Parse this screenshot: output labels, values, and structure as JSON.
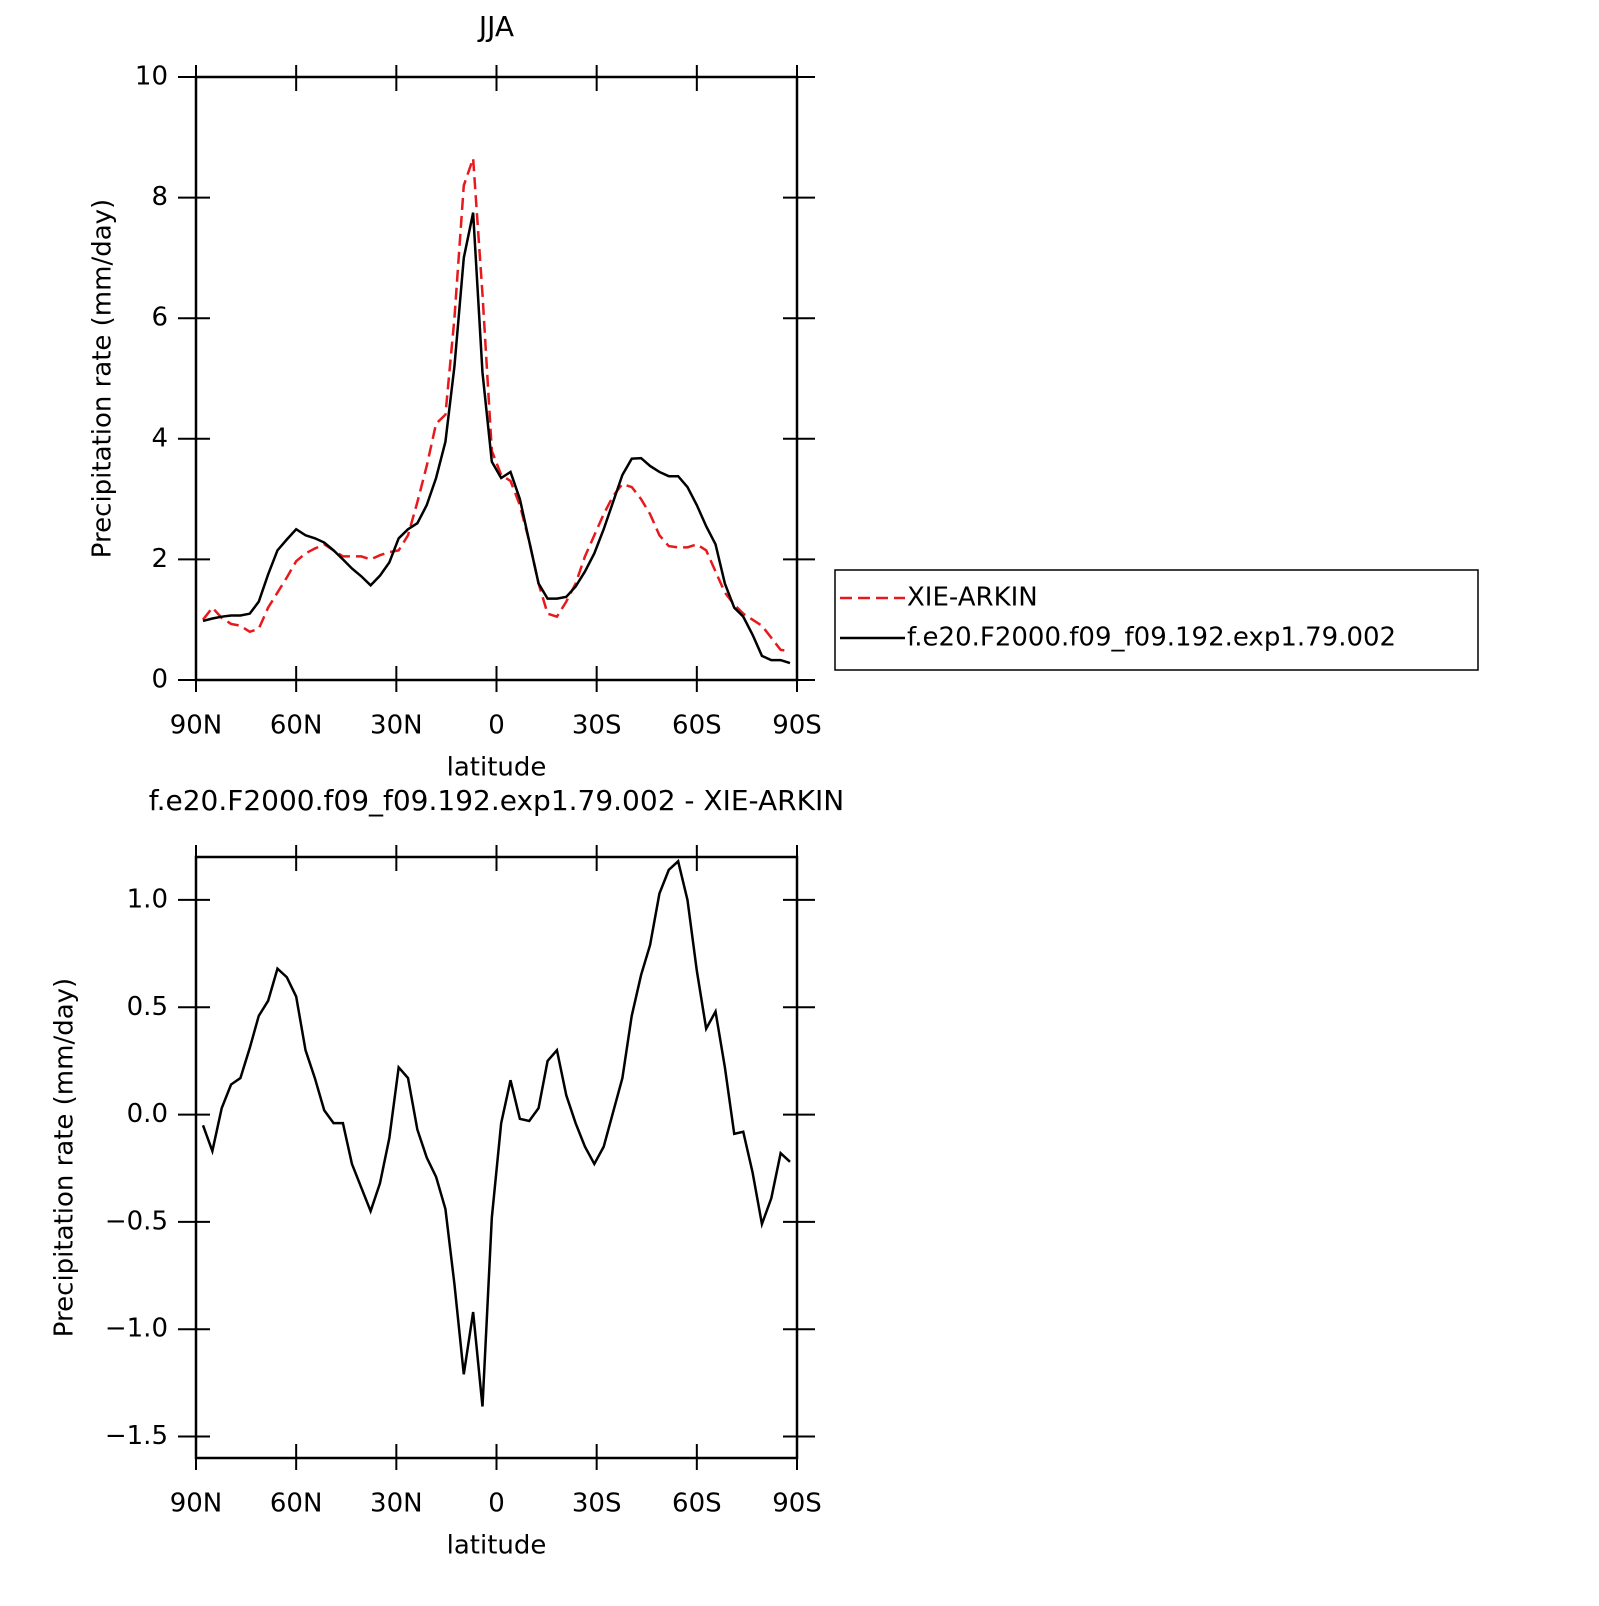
{
  "chart_data": [
    {
      "type": "line",
      "title": "JJA",
      "xlabel": "latitude",
      "ylabel": "Precipitation rate (mm/day)",
      "x": [
        87.9,
        85.1,
        82.3,
        79.5,
        76.7,
        73.9,
        71.2,
        68.4,
        65.6,
        62.8,
        60.0,
        57.2,
        54.4,
        51.6,
        48.8,
        46.0,
        43.3,
        40.5,
        37.7,
        34.9,
        32.1,
        29.3,
        26.5,
        23.7,
        20.9,
        18.1,
        15.3,
        12.6,
        9.8,
        7.0,
        4.2,
        1.4,
        -1.4,
        -4.2,
        -7.0,
        -9.8,
        -12.6,
        -15.3,
        -18.1,
        -20.9,
        -23.7,
        -26.5,
        -29.3,
        -32.1,
        -34.9,
        -37.7,
        -40.5,
        -43.3,
        -46.0,
        -48.8,
        -51.6,
        -54.4,
        -57.2,
        -60.0,
        -62.8,
        -65.6,
        -68.4,
        -71.2,
        -73.9,
        -76.7,
        -79.5,
        -82.3,
        -85.1,
        -87.9
      ],
      "series": [
        {
          "name": "XIE-ARKIN",
          "color": "#e8191c",
          "dash": "dashed",
          "values": [
            1.0,
            1.2,
            1.03,
            0.93,
            0.9,
            0.8,
            0.85,
            1.2,
            1.45,
            1.7,
            1.97,
            2.1,
            2.18,
            2.25,
            2.15,
            2.05,
            2.05,
            2.05,
            2.0,
            2.07,
            2.12,
            2.15,
            2.4,
            2.95,
            3.55,
            4.25,
            4.4,
            6.0,
            8.2,
            8.65,
            6.4,
            3.8,
            3.4,
            3.3,
            2.9,
            2.3,
            1.6,
            1.1,
            1.05,
            1.3,
            1.6,
            2.05,
            2.4,
            2.75,
            3.05,
            3.25,
            3.2,
            3.0,
            2.75,
            2.4,
            2.22,
            2.2,
            2.2,
            2.25,
            2.15,
            1.8,
            1.45,
            1.25,
            1.1,
            1.0,
            0.9,
            0.7,
            0.5,
            0.48
          ]
        },
        {
          "name": "f.e20.F2000.f09_f09.192.exp1.79.002",
          "color": "#000000",
          "dash": "solid",
          "values": [
            0.98,
            1.02,
            1.05,
            1.07,
            1.07,
            1.1,
            1.3,
            1.75,
            2.15,
            2.33,
            2.5,
            2.4,
            2.35,
            2.28,
            2.15,
            2.0,
            1.85,
            1.72,
            1.57,
            1.73,
            1.95,
            2.35,
            2.5,
            2.6,
            2.9,
            3.35,
            3.95,
            5.2,
            7.0,
            7.75,
            5.1,
            3.62,
            3.35,
            3.45,
            3.0,
            2.3,
            1.6,
            1.35,
            1.35,
            1.38,
            1.55,
            1.8,
            2.1,
            2.5,
            2.95,
            3.4,
            3.67,
            3.68,
            3.55,
            3.45,
            3.38,
            3.38,
            3.2,
            2.9,
            2.55,
            2.25,
            1.6,
            1.2,
            1.05,
            0.75,
            0.4,
            0.33,
            0.33,
            0.28
          ]
        }
      ],
      "xlim": [
        90,
        -90
      ],
      "xticks": [
        {
          "value": 90,
          "label": "90N"
        },
        {
          "value": 60,
          "label": "60N"
        },
        {
          "value": 30,
          "label": "30N"
        },
        0,
        {
          "value": -30,
          "label": "30S"
        },
        {
          "value": -60,
          "label": "60S"
        },
        {
          "value": -90,
          "label": "90S"
        }
      ],
      "ylim": [
        0,
        10
      ],
      "yticks": [
        0,
        2,
        4,
        6,
        8,
        10
      ],
      "legend": "outside right"
    },
    {
      "type": "line",
      "title": "f.e20.F2000.f09_f09.192.exp1.79.002 - XIE-ARKIN",
      "xlabel": "latitude",
      "ylabel": "Precipitation rate (mm/day)",
      "x": [
        87.9,
        85.1,
        82.3,
        79.5,
        76.7,
        73.9,
        71.2,
        68.4,
        65.6,
        62.8,
        60.0,
        57.2,
        54.4,
        51.6,
        48.8,
        46.0,
        43.3,
        40.5,
        37.7,
        34.9,
        32.1,
        29.3,
        26.5,
        23.7,
        20.9,
        18.1,
        15.3,
        12.6,
        9.8,
        7.0,
        4.2,
        1.4,
        -1.4,
        -4.2,
        -7.0,
        -9.8,
        -12.6,
        -15.3,
        -18.1,
        -20.9,
        -23.7,
        -26.5,
        -29.3,
        -32.1,
        -34.9,
        -37.7,
        -40.5,
        -43.3,
        -46.0,
        -48.8,
        -51.6,
        -54.4,
        -57.2,
        -60.0,
        -62.8,
        -65.6,
        -68.4,
        -71.2,
        -73.9,
        -76.7,
        -79.5,
        -82.3,
        -85.1,
        -87.9
      ],
      "series": [
        {
          "color": "#000000",
          "dash": "solid",
          "values": [
            -0.05,
            -0.17,
            0.03,
            0.14,
            0.17,
            0.31,
            0.46,
            0.53,
            0.68,
            0.64,
            0.55,
            0.3,
            0.17,
            0.02,
            -0.04,
            -0.04,
            -0.23,
            -0.34,
            -0.45,
            -0.32,
            -0.11,
            0.22,
            0.17,
            -0.07,
            -0.2,
            -0.29,
            -0.44,
            -0.79,
            -1.21,
            -0.92,
            -1.36,
            -0.48,
            -0.04,
            0.16,
            -0.02,
            -0.03,
            0.03,
            0.25,
            0.3,
            0.09,
            -0.04,
            -0.15,
            -0.23,
            -0.15,
            0.01,
            0.17,
            0.46,
            0.65,
            0.79,
            1.03,
            1.14,
            1.18,
            1.0,
            0.67,
            0.4,
            0.48,
            0.22,
            -0.09,
            -0.08,
            -0.27,
            -0.51,
            -0.39,
            -0.18,
            -0.22
          ]
        }
      ],
      "xlim": [
        90,
        -90
      ],
      "xticks": [
        {
          "value": 90,
          "label": "90N"
        },
        {
          "value": 60,
          "label": "60N"
        },
        {
          "value": 30,
          "label": "30N"
        },
        0,
        {
          "value": -30,
          "label": "30S"
        },
        {
          "value": -60,
          "label": "60S"
        },
        {
          "value": -90,
          "label": "90S"
        }
      ],
      "ylim": [
        -1.6,
        1.2
      ],
      "yticks": [
        {
          "value": -1.5,
          "label": "−1.5"
        },
        {
          "value": -1,
          "label": "−1.0"
        },
        {
          "value": -0.5,
          "label": "−0.5"
        },
        {
          "value": 0,
          "label": "0.0"
        },
        0.5,
        {
          "value": 1,
          "label": "1.0"
        }
      ]
    }
  ]
}
